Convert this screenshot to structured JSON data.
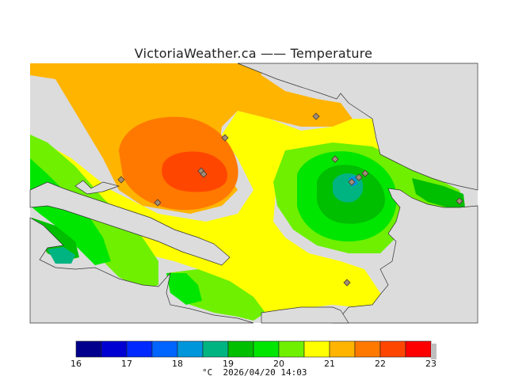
{
  "title": "VictoriaWeather.ca  —— Temperature",
  "colors": {
    "land_bg": "#dcdcdc",
    "water_outline": "#333333",
    "station_fill": "#a08d7a",
    "station_stroke": "#4a3a2c"
  },
  "legend": {
    "ticks": [
      "16",
      "17",
      "18",
      "19",
      "20",
      "21",
      "22",
      "23"
    ],
    "colors": [
      "#00008c",
      "#0000d2",
      "#0028ff",
      "#0064ff",
      "#0096dc",
      "#00b482",
      "#00be00",
      "#00e600",
      "#6ef000",
      "#ffff00",
      "#ffb400",
      "#ff7800",
      "#ff4600",
      "#ff0000"
    ],
    "unit": "°C",
    "datetime": "2026/04/20 14:03"
  }
}
